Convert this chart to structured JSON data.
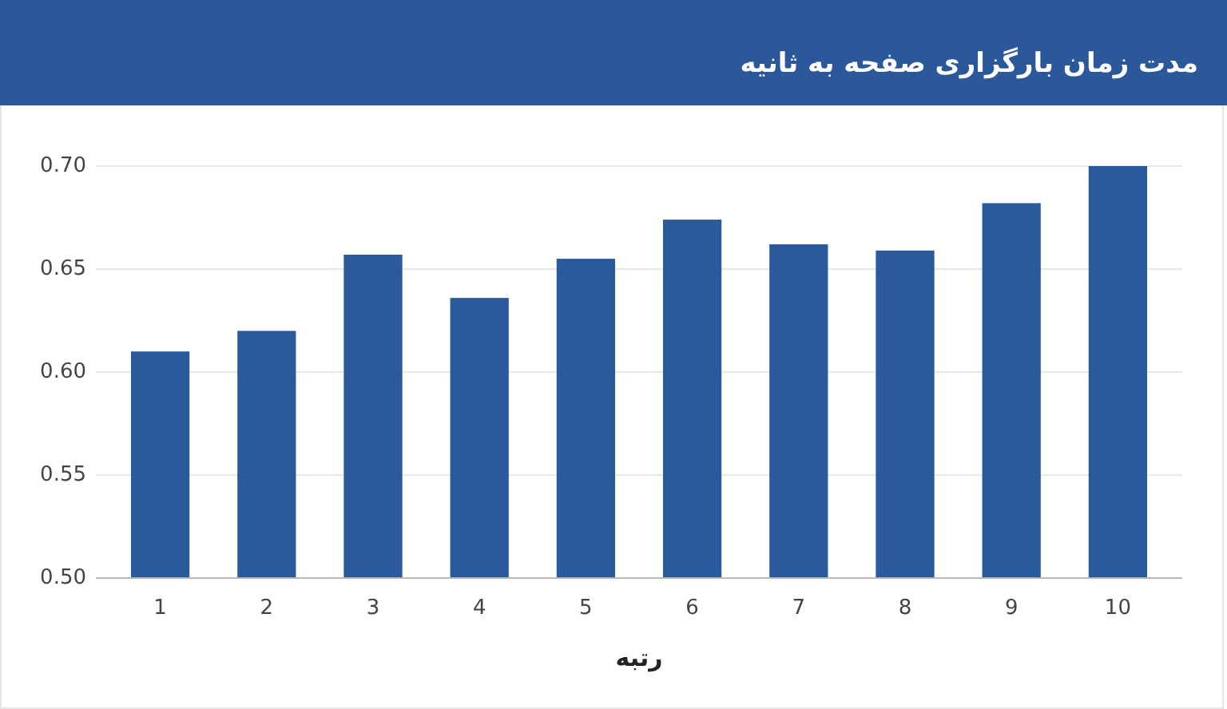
{
  "chart_data": {
    "type": "bar",
    "title": "مدت زمان بارگزاری صفحه به ثانیه",
    "xlabel": "رتبه",
    "categories": [
      "1",
      "2",
      "3",
      "4",
      "5",
      "6",
      "7",
      "8",
      "9",
      "10"
    ],
    "values": [
      0.61,
      0.62,
      0.657,
      0.636,
      0.655,
      0.674,
      0.662,
      0.659,
      0.682,
      0.7
    ],
    "color": "#2a5a9c",
    "ylim": [
      0.5,
      0.7
    ],
    "yticks": [
      {
        "value": 0.5,
        "label": "0.50"
      },
      {
        "value": 0.55,
        "label": "0.55"
      },
      {
        "value": 0.6,
        "label": "0.60"
      },
      {
        "value": 0.65,
        "label": "0.65"
      },
      {
        "value": 0.7,
        "label": "0.70"
      }
    ],
    "grid": "y"
  }
}
